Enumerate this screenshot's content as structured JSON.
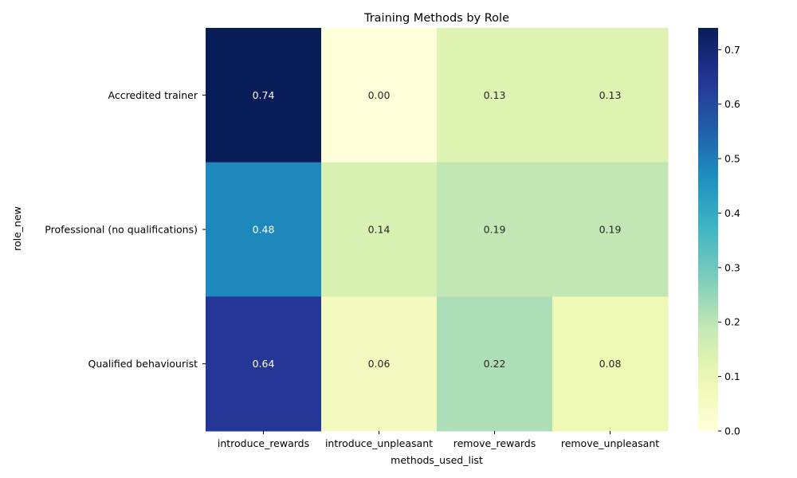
{
  "chart_data": {
    "type": "heatmap",
    "title": "Training Methods by Role",
    "xlabel": "methods_used_list",
    "ylabel": "role_new",
    "columns": [
      "introduce_rewards",
      "introduce_unpleasant",
      "remove_rewards",
      "remove_unpleasant"
    ],
    "rows": [
      "Accredited trainer",
      "Professional (no qualifications)",
      "Qualified behaviourist"
    ],
    "values": [
      [
        0.74,
        0.0,
        0.13,
        0.13
      ],
      [
        0.48,
        0.14,
        0.19,
        0.19
      ],
      [
        0.64,
        0.06,
        0.22,
        0.08
      ]
    ],
    "labels": [
      [
        "0.74",
        "0.00",
        "0.13",
        "0.13"
      ],
      [
        "0.48",
        "0.14",
        "0.19",
        "0.19"
      ],
      [
        "0.64",
        "0.06",
        "0.22",
        "0.08"
      ]
    ],
    "colormap": "YlGnBu",
    "vmin": 0.0,
    "vmax": 0.74,
    "colorbar_ticks": [
      "0.0",
      "0.1",
      "0.2",
      "0.3",
      "0.4",
      "0.5",
      "0.6",
      "0.7"
    ]
  }
}
